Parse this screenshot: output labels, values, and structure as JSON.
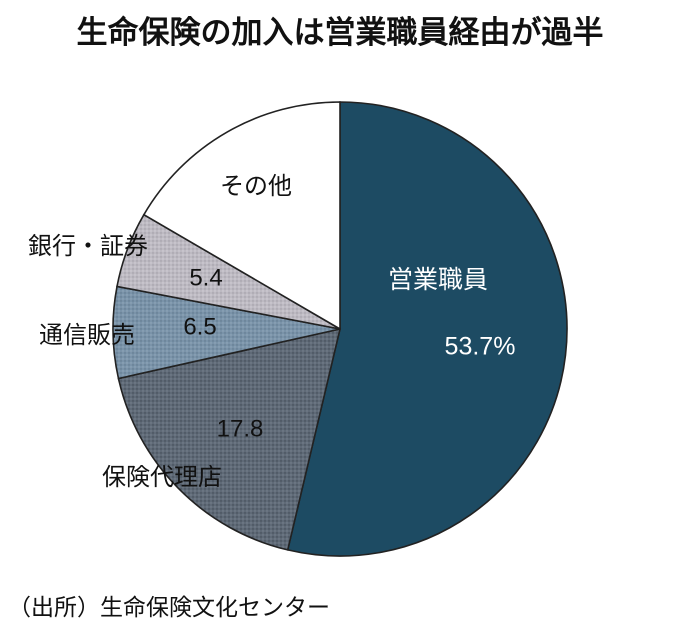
{
  "title": "生命保険の加入は営業職員経由が過半",
  "source": "（出所）生命保険文化センター",
  "chart_data": {
    "type": "pie",
    "title": "生命保険の加入は営業職員経由が過半",
    "start": "12 o'clock",
    "direction": "clockwise",
    "slices": [
      {
        "label": "営業職員",
        "value": 53.7,
        "value_label": "53.7%",
        "color": "#1d4b63",
        "pattern": "none",
        "label_color": "#ffffff",
        "label_position": "inside"
      },
      {
        "label": "保険代理店",
        "value": 17.8,
        "value_label": "17.8",
        "color": "#5f6a77",
        "pattern": "dots",
        "label_color": "#111111",
        "label_position": "outside"
      },
      {
        "label": "通信販売",
        "value": 6.5,
        "value_label": "6.5",
        "color": "#7a93a9",
        "pattern": "dots",
        "label_color": "#111111",
        "label_position": "outside"
      },
      {
        "label": "銀行・証券",
        "value": 5.4,
        "value_label": "5.4",
        "color": "#bdbac2",
        "pattern": "dots",
        "label_color": "#111111",
        "label_position": "outside"
      },
      {
        "label": "その他",
        "value": 16.6,
        "value_label": "",
        "color": "#ffffff",
        "pattern": "none",
        "label_color": "#111111",
        "label_position": "inside"
      }
    ]
  }
}
